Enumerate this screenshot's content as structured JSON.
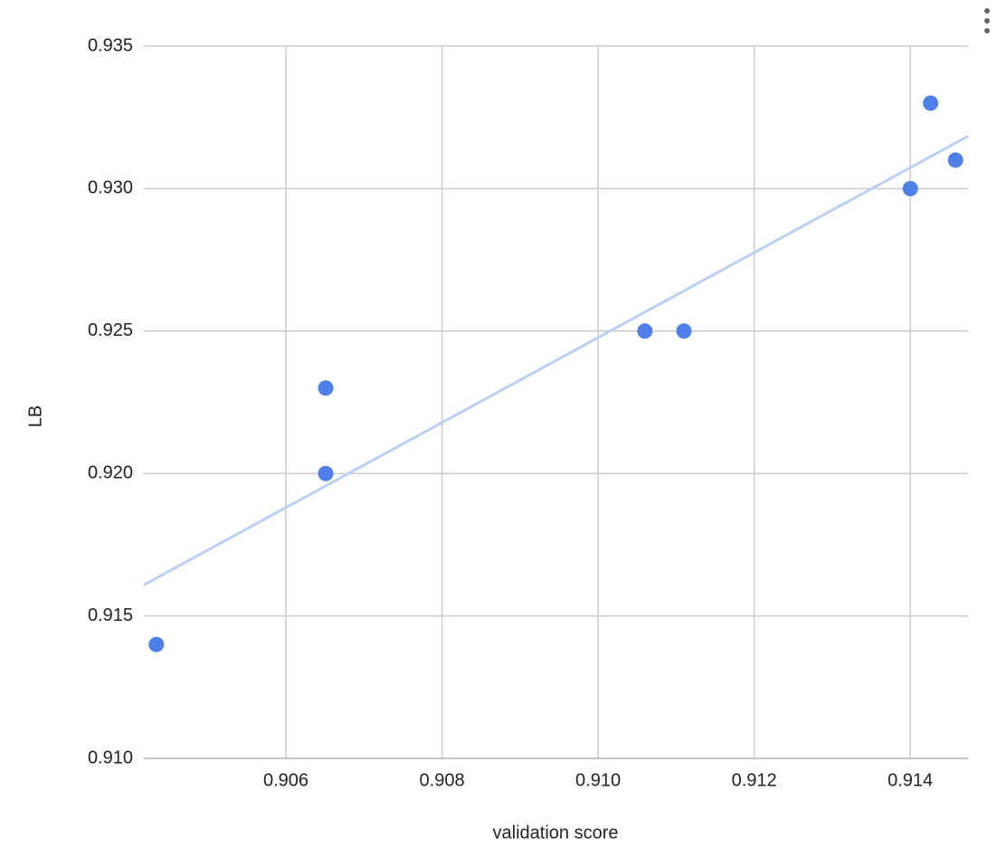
{
  "chart_data": {
    "type": "scatter",
    "x_label": "validation score",
    "y_label": "LB",
    "x": [
      0.90434,
      0.90651,
      0.90651,
      0.9106,
      0.9111,
      0.914,
      0.91426,
      0.91458
    ],
    "values": [
      0.914,
      0.923,
      0.92,
      0.925,
      0.925,
      0.93,
      0.933,
      0.931
    ],
    "color": "#4f7fe8",
    "trendline": "linear",
    "trendline_color": "#b9cff5",
    "xlim": [
      0.90418,
      0.91474
    ],
    "ylim": [
      0.91,
      0.935
    ],
    "xticks": [
      0.906,
      0.908,
      {
        "value": 0.91,
        "label": "0.910"
      },
      0.912,
      0.914
    ],
    "yticks": [
      {
        "value": 0.91,
        "label": "0.910"
      },
      0.915,
      {
        "value": 0.92,
        "label": "0.920"
      },
      0.925,
      {
        "value": 0.93,
        "label": "0.930"
      },
      0.935
    ],
    "grid": true
  }
}
